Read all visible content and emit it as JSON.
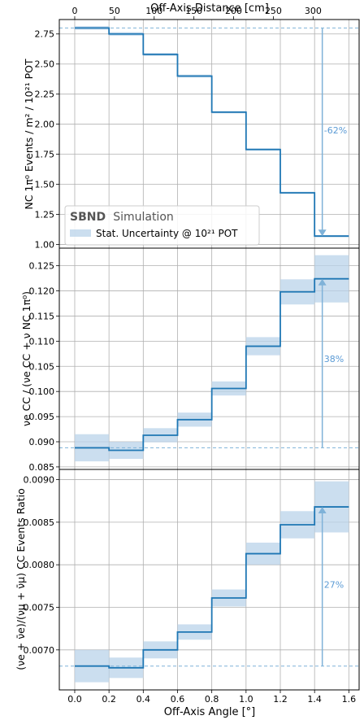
{
  "colors": {
    "line": "#1f77b4",
    "band": "#b9d3ea",
    "ref": "#7fb2d8",
    "arrow": "#7fb2d8",
    "grid": "#b0b0b0",
    "annotation": "#5b9bd5"
  },
  "top_axis": {
    "label": "Off-Axis Distance [cm]",
    "ticks": [
      "0",
      "50",
      "100",
      "150",
      "200",
      "250",
      "300"
    ]
  },
  "bottom_axis": {
    "label": "Off-Axis Angle [°]",
    "ticks": [
      "0.0",
      "0.2",
      "0.4",
      "0.6",
      "0.8",
      "1.0",
      "1.2",
      "1.4",
      "1.6"
    ]
  },
  "legend": {
    "experiment": "SBND",
    "simulation": "Simulation",
    "band_label": "Stat. Uncertainty @ 10²¹ POT"
  },
  "chart_data": [
    {
      "type": "line",
      "step": true,
      "xlabel": "Off-Axis Angle [°]",
      "ylabel": "NC 1π⁰ Events / m² / 10²¹ POT",
      "edges": [
        0.0,
        0.2,
        0.4,
        0.6,
        0.8,
        1.0,
        1.2,
        1.4,
        1.6
      ],
      "values": [
        2.8,
        2.75,
        2.58,
        2.4,
        2.1,
        1.79,
        1.43,
        1.07
      ],
      "errors": [
        0.015,
        0.015,
        0.012,
        0.012,
        0.01,
        0.01,
        0.009,
        0.008
      ],
      "ylim": [
        0.97,
        2.87
      ],
      "yticks": [
        "1.00",
        "1.25",
        "1.50",
        "1.75",
        "2.00",
        "2.25",
        "2.50",
        "2.75"
      ],
      "yticks_values": [
        1.0,
        1.25,
        1.5,
        1.75,
        2.0,
        2.25,
        2.5,
        2.75
      ],
      "reference": 2.8,
      "arrow_from": 2.8,
      "arrow_to": 1.07,
      "annotation": "-62%",
      "annotation_y": 1.95,
      "grid": true
    },
    {
      "type": "line",
      "step": true,
      "xlabel": "Off-Axis Angle [°]",
      "ylabel": "νe CC / (νe CC + ν NC 1π⁰)",
      "edges": [
        0.0,
        0.2,
        0.4,
        0.6,
        0.8,
        1.0,
        1.2,
        1.4,
        1.6
      ],
      "values": [
        0.0888,
        0.0883,
        0.0913,
        0.0944,
        0.1006,
        0.109,
        0.1198,
        0.1224
      ],
      "errors": [
        0.0027,
        0.0017,
        0.0014,
        0.0014,
        0.0014,
        0.0018,
        0.0025,
        0.0047
      ],
      "ylim": [
        0.0845,
        0.1285
      ],
      "yticks": [
        "0.085",
        "0.090",
        "0.095",
        "0.100",
        "0.105",
        "0.110",
        "0.115",
        "0.120",
        "0.125"
      ],
      "yticks_values": [
        0.085,
        0.09,
        0.095,
        0.1,
        0.105,
        0.11,
        0.115,
        0.12,
        0.125
      ],
      "reference": 0.0888,
      "arrow_from": 0.0888,
      "arrow_to": 0.1224,
      "annotation": "38%",
      "annotation_y": 0.1065,
      "grid": true
    },
    {
      "type": "line",
      "step": true,
      "xlabel": "Off-Axis Angle [°]",
      "ylabel": "(νe + ν̄e)/(νμ + ν̄μ) CC Events Ratio",
      "edges": [
        0.0,
        0.2,
        0.4,
        0.6,
        0.8,
        1.0,
        1.2,
        1.4,
        1.6
      ],
      "values": [
        0.00681,
        0.00679,
        0.007,
        0.00721,
        0.00761,
        0.00813,
        0.00847,
        0.00868
      ],
      "errors": [
        0.00019,
        0.00012,
        0.0001,
        9e-05,
        0.0001,
        0.00013,
        0.00016,
        0.0003
      ],
      "ylim": [
        0.00653,
        0.00912
      ],
      "yticks": [
        "0.0070",
        "0.0075",
        "0.0080",
        "0.0085",
        "0.0090"
      ],
      "yticks_values": [
        0.007,
        0.0075,
        0.008,
        0.0085,
        0.009
      ],
      "reference": 0.00681,
      "arrow_from": 0.00681,
      "arrow_to": 0.00868,
      "annotation": "27%",
      "annotation_y": 0.00777,
      "grid": true
    }
  ]
}
